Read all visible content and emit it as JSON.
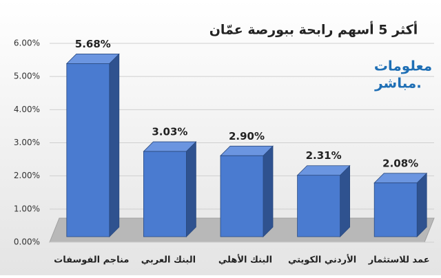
{
  "chart_data": {
    "type": "bar3d",
    "title": "أكثر 5 أسهم رابحة ببورصة عمّان",
    "annotations": [
      "معلومات",
      "مباشر."
    ],
    "categories": [
      "مناجم الفوسفات",
      "البنك العربي",
      "البنك الأهلي",
      "الأردني الكويتي",
      "عمد للاستثمار"
    ],
    "values": [
      5.68,
      3.03,
      2.9,
      2.31,
      2.08
    ],
    "value_labels": [
      "5.68%",
      "3.03%",
      "2.90%",
      "2.31%",
      "2.08%"
    ],
    "color": "#4a7bd0",
    "ylim": [
      0,
      6
    ],
    "yticks": [
      {
        "value": 0,
        "label": "0.00%"
      },
      {
        "value": 1,
        "label": "1.00%"
      },
      {
        "value": 2,
        "label": "2.00%"
      },
      {
        "value": 3,
        "label": "3.00%"
      },
      {
        "value": 4,
        "label": "4.00%"
      },
      {
        "value": 5,
        "label": "5.00%"
      },
      {
        "value": 6,
        "label": "6.00%"
      }
    ],
    "grid": true
  }
}
